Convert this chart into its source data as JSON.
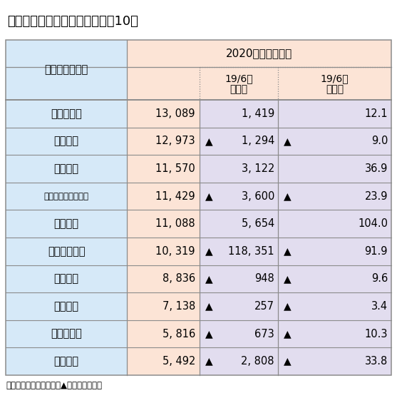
{
  "title": "地銀の連結四半期純利益　上位10社",
  "header_period": "2020年４〜６月期",
  "header_bank": "銀　行　名　等",
  "header_chg_amt_l1": "19/6比",
  "header_chg_amt_l2": "増減額",
  "header_chg_rate_l1": "19/6比",
  "header_chg_rate_l2": "増減率",
  "rows": [
    {
      "name": "めぶきＦＧ",
      "val": "13, 089",
      "chg": "1, 419",
      "chg_neg": false,
      "rate": "12.1",
      "rate_neg": false
    },
    {
      "name": "千　　葉",
      "val": "12, 973",
      "chg": "1, 294",
      "chg_neg": true,
      "rate": "9.0",
      "rate_neg": true
    },
    {
      "name": "静　　岡",
      "val": "11, 570",
      "chg": "3, 122",
      "chg_neg": false,
      "rate": "36.9",
      "rate_neg": false
    },
    {
      "name": "コンコルディアＦＧ",
      "val": "11, 429",
      "chg": "3, 600",
      "chg_neg": true,
      "rate": "23.9",
      "rate_neg": true
    },
    {
      "name": "伊　　予",
      "val": "11, 088",
      "chg": "5, 654",
      "chg_neg": false,
      "rate": "104.0",
      "rate_neg": false
    },
    {
      "name": "ふくおかＦＧ",
      "val": "10, 319",
      "chg": "118, 351",
      "chg_neg": true,
      "rate": "91.9",
      "rate_neg": true
    },
    {
      "name": "京　　都",
      "val": "8, 836",
      "chg": "948",
      "chg_neg": true,
      "rate": "9.6",
      "rate_neg": true
    },
    {
      "name": "九州ＦＧ",
      "val": "7, 138",
      "chg": "257",
      "chg_neg": true,
      "rate": "3.4",
      "rate_neg": true
    },
    {
      "name": "七　十　七",
      "val": "5, 816",
      "chg": "673",
      "chg_neg": true,
      "rate": "10.3",
      "rate_neg": true
    },
    {
      "name": "群　　馬",
      "val": "5, 492",
      "chg": "2, 808",
      "chg_neg": true,
      "rate": "33.8",
      "rate_neg": true
    }
  ],
  "note": "（注）　単位：百万円。▲印は減少、低下",
  "bg_blue": "#d6e9f8",
  "bg_pink": "#fce4d6",
  "bg_purple": "#e2ddef",
  "border": "#8c8c8c",
  "text": "#000000"
}
